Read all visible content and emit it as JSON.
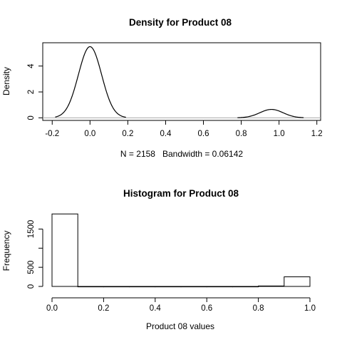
{
  "chart_data": [
    {
      "type": "line",
      "title": "Density for Product 08",
      "xlabel": "N = 2158   Bandwidth = 0.06142",
      "ylabel": "Density",
      "xlim": [
        -0.25,
        1.22
      ],
      "ylim": [
        -0.2,
        5.8
      ],
      "x_ticks": [
        -0.2,
        0.0,
        0.2,
        0.4,
        0.6,
        0.8,
        1.0,
        1.2
      ],
      "x_tick_labels": [
        "-0.2",
        "0.0",
        "0.2",
        "0.4",
        "0.6",
        "0.8",
        "1.0",
        "1.2"
      ],
      "y_ticks": [
        0,
        2,
        4
      ],
      "y_tick_labels": [
        "0",
        "2",
        "4"
      ],
      "baseline": 0,
      "curve_segments": [
        {
          "x_start": -0.184,
          "x_end": 0.19,
          "peak_x": 0.0,
          "peak_y": 5.5,
          "sd": 0.0614
        },
        {
          "x_start": 0.78,
          "x_end": 1.13,
          "peak_x": 0.96,
          "peak_y": 0.65,
          "sd": 0.0614
        }
      ],
      "series": [
        {
          "line_color": "#000000"
        }
      ]
    },
    {
      "type": "bar",
      "title": "Histogram for Product 08",
      "xlabel": "Product 08 values",
      "ylabel": "Frequency",
      "xlim": [
        0.0,
        1.0
      ],
      "ylim": [
        0,
        1900
      ],
      "x_ticks": [
        0.0,
        0.2,
        0.4,
        0.6,
        0.8,
        1.0
      ],
      "x_tick_labels": [
        "0.0",
        "0.2",
        "0.4",
        "0.6",
        "0.8",
        "1.0"
      ],
      "y_ticks": [
        0,
        500,
        1000,
        1500
      ],
      "y_tick_labels": [
        "0",
        "500",
        "",
        "1500"
      ],
      "bins": [
        {
          "x0": 0.0,
          "x1": 0.1,
          "count": 1895
        },
        {
          "x0": 0.1,
          "x1": 0.2,
          "count": 0
        },
        {
          "x0": 0.2,
          "x1": 0.3,
          "count": 0
        },
        {
          "x0": 0.3,
          "x1": 0.4,
          "count": 0
        },
        {
          "x0": 0.4,
          "x1": 0.5,
          "count": 0
        },
        {
          "x0": 0.5,
          "x1": 0.6,
          "count": 0
        },
        {
          "x0": 0.6,
          "x1": 0.7,
          "count": 0
        },
        {
          "x0": 0.7,
          "x1": 0.8,
          "count": 0
        },
        {
          "x0": 0.8,
          "x1": 0.9,
          "count": 12
        },
        {
          "x0": 0.9,
          "x1": 1.0,
          "count": 251
        }
      ]
    }
  ]
}
